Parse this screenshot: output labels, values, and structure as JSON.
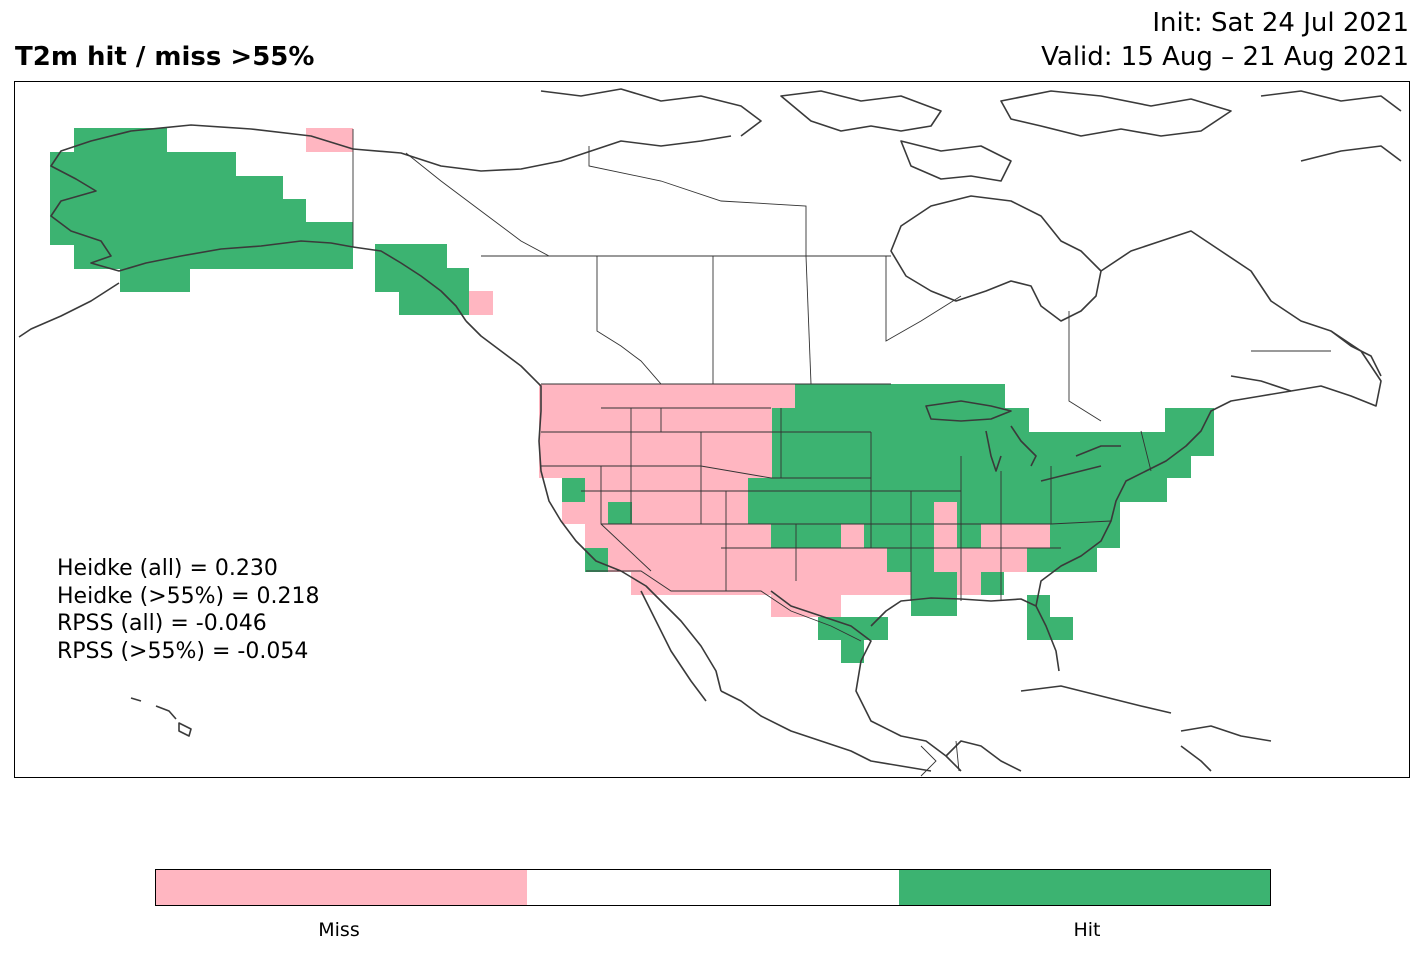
{
  "header": {
    "title": "T2m hit / miss  >55%",
    "init": "Init: Sat 24 Jul 2021",
    "valid": "Valid: 15 Aug – 21 Aug 2021"
  },
  "scores": [
    "Heidke (all) = 0.230",
    "Heidke (>55%) = 0.218",
    "RPSS (all) = -0.046",
    "RPSS (>55%) = -0.054"
  ],
  "colors": {
    "miss": "#ffb6c1",
    "neutral": "#ffffff",
    "hit": "#3cb371",
    "coastline": "#3a3a3a",
    "border": "#333333"
  },
  "legend": {
    "miss_label": "Miss",
    "hit_label": "Hit"
  }
}
